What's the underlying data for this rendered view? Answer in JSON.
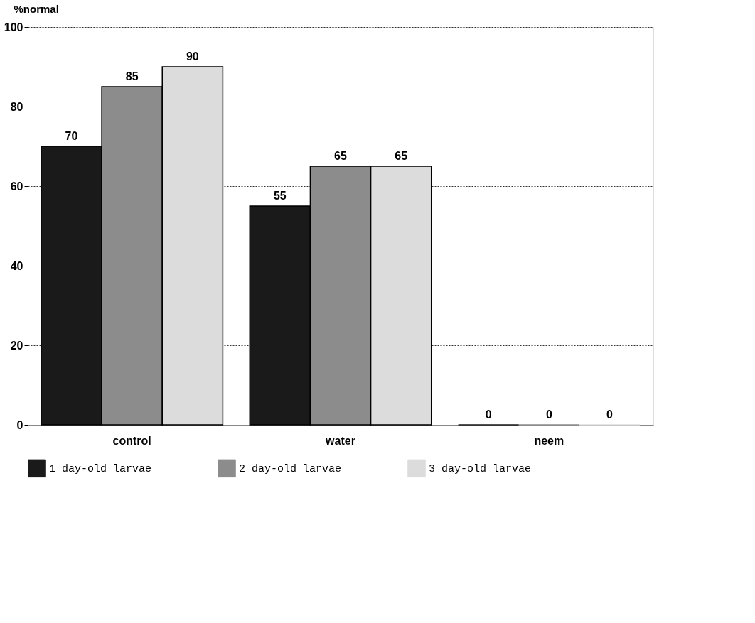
{
  "chart_data": {
    "type": "bar",
    "ylabel": "%normal",
    "categories": [
      "control",
      "water",
      "neem"
    ],
    "series": [
      {
        "name": "1 day-old larvae",
        "color": "#1a1a1a",
        "values": [
          70,
          55,
          0
        ]
      },
      {
        "name": "2 day-old larvae",
        "color": "#8c8c8c",
        "values": [
          85,
          65,
          0
        ]
      },
      {
        "name": "3 day-old larvae",
        "color": "#dcdcdc",
        "values": [
          90,
          65,
          0
        ]
      }
    ],
    "ylim": [
      0,
      100
    ],
    "yticks": [
      0,
      20,
      40,
      60,
      80,
      100
    ],
    "grid": "y",
    "legend": "bottom",
    "data_labels": true
  }
}
